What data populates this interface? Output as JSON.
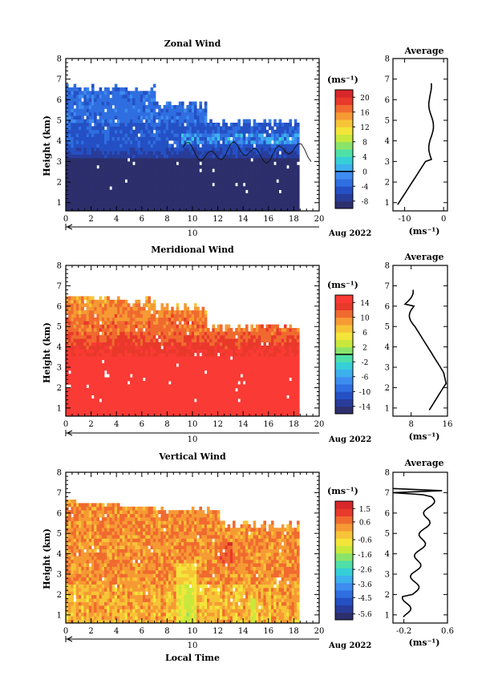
{
  "chart_data": [
    {
      "type": "heatmap",
      "title": "Zonal Wind",
      "xlabel": "",
      "ylabel": "Height (km)",
      "xlim": [
        0,
        20
      ],
      "ylim": [
        0.6,
        8
      ],
      "xticks": [
        "0",
        "2",
        "4",
        "6",
        "8",
        "10",
        "12",
        "14",
        "16",
        "18",
        "20"
      ],
      "yticks": [
        "1",
        "2",
        "3",
        "4",
        "5",
        "6",
        "7",
        "8"
      ],
      "date_label": "10",
      "date_suffix": "Aug 2022",
      "colorbar": {
        "unit": "(ms⁻¹)",
        "ticks": [
          "20",
          "16",
          "12",
          "8",
          "4",
          "0",
          "-4",
          "-8"
        ],
        "min": -10,
        "max": 22,
        "zero_line": 0,
        "colors": [
          "#2c2f6b",
          "#283c9a",
          "#2450c4",
          "#2f6ee0",
          "#3e8cf0",
          "#3db0ee",
          "#36cfd8",
          "#4ee0a8",
          "#8ae46a",
          "#c8e83c",
          "#f3e53a",
          "#f7c437",
          "#f69a34",
          "#f06a2f",
          "#e8392b",
          "#d8272a"
        ]
      },
      "field": "zonal",
      "profile": {
        "title": "Average",
        "xlabel": "(ms⁻¹)",
        "xticks": [
          "-10",
          "0"
        ],
        "xlim": [
          -13,
          1
        ]
      }
    },
    {
      "type": "heatmap",
      "title": "Meridional Wind",
      "xlabel": "",
      "ylabel": "Height (km)",
      "xlim": [
        0,
        20
      ],
      "ylim": [
        0.6,
        8
      ],
      "xticks": [
        "0",
        "2",
        "4",
        "6",
        "8",
        "10",
        "12",
        "14",
        "16",
        "18",
        "20"
      ],
      "yticks": [
        "1",
        "2",
        "3",
        "4",
        "5",
        "6",
        "7",
        "8"
      ],
      "date_label": "10",
      "date_suffix": "Aug 2022",
      "colorbar": {
        "unit": "(ms⁻¹)",
        "ticks": [
          "14",
          "10",
          "6",
          "2",
          "-2",
          "-6",
          "-10",
          "-14"
        ],
        "min": -16,
        "max": 16,
        "zero_line": 0,
        "colors": [
          "#2c2f6b",
          "#283c9a",
          "#2450c4",
          "#2f6ee0",
          "#3e8cf0",
          "#3db0ee",
          "#36cfd8",
          "#4ee0a8",
          "#8ae46a",
          "#c8e83c",
          "#f3e53a",
          "#f7c437",
          "#f69a34",
          "#f06a2f",
          "#e8392b",
          "#fa3a35"
        ]
      },
      "field": "meridional",
      "profile": {
        "title": "Average",
        "xlabel": "(ms⁻¹)",
        "xticks": [
          "8",
          "16"
        ],
        "xlim": [
          4,
          16
        ]
      }
    },
    {
      "type": "heatmap",
      "title": "Vertical Wind",
      "xlabel": "Local Time",
      "ylabel": "Height (km)",
      "xlim": [
        0,
        20
      ],
      "ylim": [
        0.6,
        8
      ],
      "xticks": [
        "0",
        "2",
        "4",
        "6",
        "8",
        "10",
        "12",
        "14",
        "16",
        "18",
        "20"
      ],
      "yticks": [
        "1",
        "2",
        "3",
        "4",
        "5",
        "6",
        "7",
        "8"
      ],
      "date_label": "10",
      "date_suffix": "Aug 2022",
      "colorbar": {
        "unit": "(ms⁻¹)",
        "ticks": [
          "1.5",
          "0.6",
          "-0.6",
          "-1.6",
          "-2.6",
          "-3.6",
          "-4.5",
          "-5.6"
        ],
        "min": -6,
        "max": 2,
        "zero_line": null,
        "colors": [
          "#2c2f6b",
          "#283c9a",
          "#2450c4",
          "#2f6ee0",
          "#3e8cf0",
          "#3db0ee",
          "#36cfd8",
          "#4ee0a8",
          "#8ae46a",
          "#c8e83c",
          "#f3e53a",
          "#f7c437",
          "#f69a34",
          "#f06a2f",
          "#e8392b",
          "#d8272a"
        ]
      },
      "field": "vertical",
      "profile": {
        "title": "Average",
        "xlabel": "(ms⁻¹)",
        "xticks": [
          "-0.2",
          "0.6"
        ],
        "xlim": [
          -0.4,
          0.6
        ]
      }
    }
  ]
}
